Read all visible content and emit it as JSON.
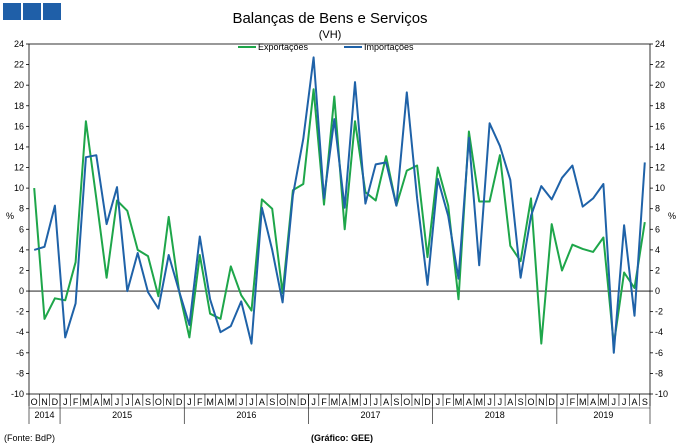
{
  "colors": {
    "exportacoes": "#1ea64a",
    "importacoes": "#1f62a8",
    "logo": "#1f5fa8"
  },
  "logo": {
    "icon": "three-blue-blocks"
  },
  "footer": {
    "source": "(Fonte: BdP)",
    "credit": "(Gráfico: GEE)"
  },
  "chart_data": {
    "type": "line",
    "title": "Balanças de Bens e Serviços",
    "subtitle": "(VH)",
    "ylabel_left": "%",
    "ylabel_right": "%",
    "ylim": [
      -10,
      24
    ],
    "ytick_step": 2,
    "grid": false,
    "legend_position": "top-center",
    "months": [
      "O",
      "N",
      "D",
      "J",
      "F",
      "M",
      "A",
      "M",
      "J",
      "J",
      "A",
      "S",
      "O",
      "N",
      "D",
      "J",
      "F",
      "M",
      "A",
      "M",
      "J",
      "J",
      "A",
      "S",
      "O",
      "N",
      "D",
      "J",
      "F",
      "M",
      "A",
      "M",
      "J",
      "J",
      "A",
      "S",
      "O",
      "N",
      "D",
      "J",
      "F",
      "M",
      "A",
      "M",
      "J",
      "J",
      "A",
      "S",
      "O",
      "N",
      "D",
      "J",
      "F",
      "M",
      "A",
      "M",
      "J",
      "J",
      "A",
      "S"
    ],
    "years": [
      {
        "label": "2014",
        "start": 0,
        "end": 2
      },
      {
        "label": "2015",
        "start": 3,
        "end": 14
      },
      {
        "label": "2016",
        "start": 15,
        "end": 26
      },
      {
        "label": "2017",
        "start": 27,
        "end": 38
      },
      {
        "label": "2018",
        "start": 39,
        "end": 50
      },
      {
        "label": "2019",
        "start": 51,
        "end": 59
      }
    ],
    "series": [
      {
        "name": "Exportações",
        "color_key": "exportacoes",
        "values": [
          10.0,
          -2.7,
          -0.7,
          -0.9,
          2.8,
          16.5,
          9.0,
          1.3,
          8.8,
          7.8,
          4.0,
          3.4,
          -0.5,
          7.2,
          0.0,
          -4.5,
          3.5,
          -2.2,
          -2.7,
          2.4,
          -0.4,
          -1.9,
          8.9,
          8.0,
          -0.2,
          9.8,
          10.4,
          19.6,
          8.4,
          18.9,
          6.0,
          16.5,
          9.6,
          8.8,
          13.1,
          8.3,
          11.7,
          12.2,
          3.3,
          12.0,
          8.3,
          -0.8,
          15.5,
          8.7,
          8.7,
          13.2,
          4.4,
          2.9,
          9.0,
          -5.1,
          6.5,
          2.0,
          4.5,
          4.1,
          3.8,
          5.2,
          -5.2,
          1.8,
          0.3,
          6.7
        ]
      },
      {
        "name": "Importações",
        "color_key": "importacoes",
        "values": [
          4.0,
          4.3,
          8.3,
          -4.5,
          -1.2,
          13.0,
          13.2,
          6.5,
          10.1,
          0.0,
          3.7,
          -0.1,
          -1.7,
          3.5,
          0.0,
          -3.3,
          5.3,
          -0.8,
          -4.0,
          -3.4,
          -1.0,
          -5.1,
          8.1,
          4.0,
          -1.1,
          9.3,
          14.8,
          22.7,
          9.0,
          16.7,
          8.1,
          20.3,
          8.5,
          12.3,
          12.5,
          8.3,
          19.3,
          9.0,
          0.6,
          10.9,
          7.3,
          1.2,
          14.9,
          2.5,
          16.3,
          14.1,
          10.8,
          1.3,
          7.3,
          10.2,
          8.9,
          11.0,
          12.2,
          8.2,
          9.0,
          10.4,
          -6.0,
          6.4,
          -2.4,
          12.5
        ]
      }
    ]
  }
}
